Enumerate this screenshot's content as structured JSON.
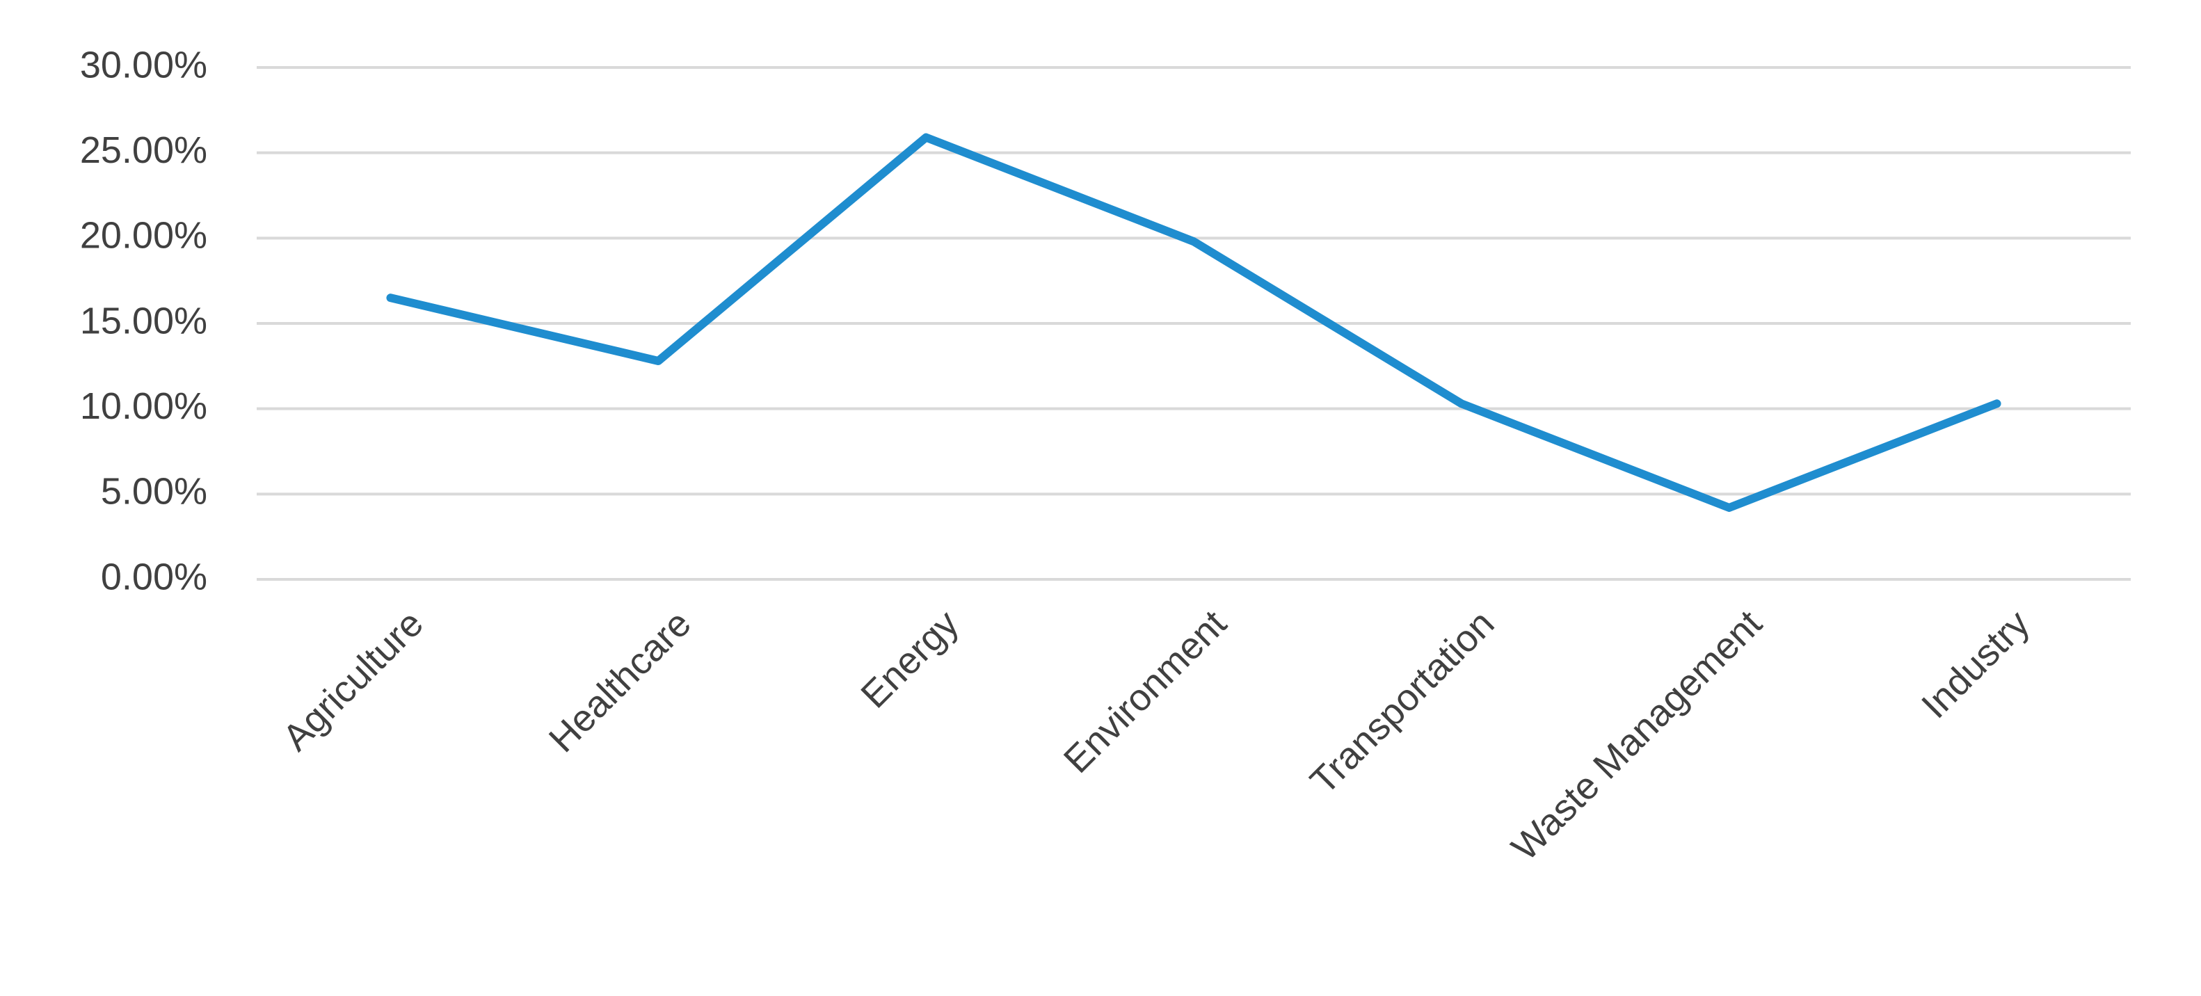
{
  "chart_data": {
    "type": "line",
    "categories": [
      "Agriculture",
      "Healthcare",
      "Energy",
      "Environment",
      "Transportation",
      "Waste Management",
      "Industry"
    ],
    "series": [
      {
        "color": "#1f8dcf",
        "values": [
          16.5,
          12.8,
          25.9,
          19.8,
          10.3,
          4.2,
          10.3
        ]
      }
    ],
    "ylim": [
      0,
      30
    ],
    "yticks": [
      {
        "value": 0,
        "label": "0.00%"
      },
      {
        "value": 5,
        "label": "5.00%"
      },
      {
        "value": 10,
        "label": "10.00%"
      },
      {
        "value": 15,
        "label": "15.00%"
      },
      {
        "value": 20,
        "label": "20.00%"
      },
      {
        "value": 25,
        "label": "25.00%"
      },
      {
        "value": 30,
        "label": "30.00%"
      }
    ],
    "grid": true
  }
}
